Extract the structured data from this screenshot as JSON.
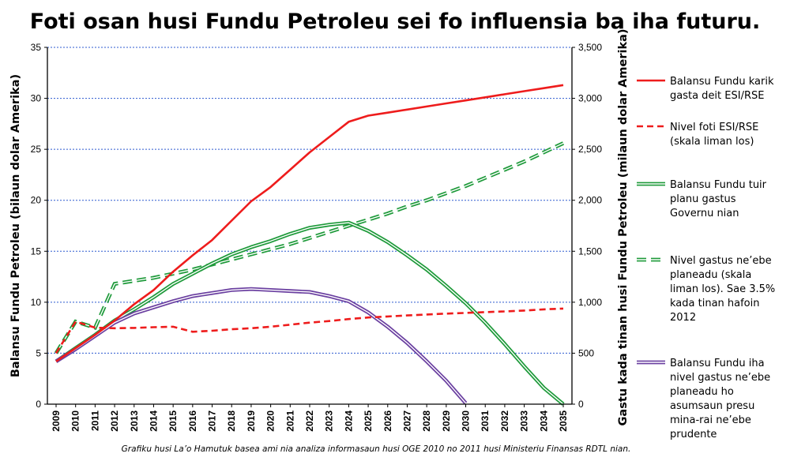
{
  "chart_data": {
    "type": "line",
    "title": "Foti osan husi Fundu Petroleu sei fo influensia ba iha futuru.",
    "ylabel_left": "Balansu Fundu Petroleu (bilaun dolar Amerika)",
    "ylabel_right": "Gastu kada tinan husi Fundu Petroleu (milaun dolar Amerika)",
    "caption": "Grafiku husi La’o Hamutuk basea ami nia analiza informasaun husi OGE 2010 no 2011 husi Ministeriu Finansas RDTL nian.",
    "x": [
      2009,
      2010,
      2011,
      2012,
      2013,
      2014,
      2015,
      2016,
      2017,
      2018,
      2019,
      2020,
      2021,
      2022,
      2023,
      2024,
      2025,
      2026,
      2027,
      2028,
      2029,
      2030,
      2031,
      2032,
      2033,
      2034,
      2035
    ],
    "y_left_range": [
      0,
      35
    ],
    "y_left_ticks": [
      "0",
      "5",
      "10",
      "15",
      "20",
      "25",
      "30",
      "35"
    ],
    "y_right_range": [
      0,
      3500
    ],
    "y_right_ticks": [
      "0",
      "500",
      "1,000",
      "1,500",
      "2,000",
      "2,500",
      "3,000",
      "3,500"
    ],
    "grid": "horizontal",
    "legend_position": "right",
    "series": [
      {
        "name": "Balansu Fundu karik gasta deit ESI/RSE",
        "axis": "left",
        "style": "solid",
        "color": "#ee1c1c",
        "values": [
          4.2,
          5.5,
          6.8,
          8.2,
          9.8,
          11.2,
          13.0,
          14.6,
          16.1,
          18.0,
          19.9,
          21.3,
          23.0,
          24.7,
          26.2,
          27.7,
          28.3,
          28.6,
          28.9,
          29.2,
          29.5,
          29.8,
          30.1,
          30.4,
          30.7,
          31.0,
          31.3
        ]
      },
      {
        "name": "Nivel foti ESI/RSE (skala liman los)",
        "axis": "right",
        "style": "dashed",
        "color": "#ee1c1c",
        "values": [
          500,
          810,
          750,
          745,
          748,
          755,
          760,
          710,
          720,
          735,
          745,
          760,
          780,
          800,
          815,
          835,
          850,
          860,
          870,
          880,
          888,
          895,
          903,
          910,
          918,
          930,
          938
        ]
      },
      {
        "name": "Balansu Fundu tuir planu gastus Governu nian",
        "axis": "left",
        "style": "double",
        "color": "#1e9a3a",
        "values": [
          4.2,
          5.5,
          6.8,
          8.2,
          9.3,
          10.5,
          11.8,
          12.8,
          13.8,
          14.7,
          15.4,
          16.0,
          16.7,
          17.3,
          17.6,
          17.8,
          17.0,
          15.9,
          14.6,
          13.2,
          11.6,
          9.9,
          8.0,
          5.9,
          3.7,
          1.6,
          0
        ]
      },
      {
        "name": "Nivel gastus ne’ebe planeadu (skala liman los). Sae 3.5% kada tinan hafoin 2012",
        "axis": "right",
        "style": "dashed-double",
        "color": "#1e9a3a",
        "values": [
          500,
          810,
          750,
          1180,
          1210,
          1240,
          1280,
          1320,
          1370,
          1420,
          1470,
          1520,
          1570,
          1630,
          1690,
          1750,
          1810,
          1870,
          1940,
          2000,
          2070,
          2140,
          2220,
          2300,
          2380,
          2470,
          2560
        ]
      },
      {
        "name": "Balansu Fundu iha nivel gastus ne’ebe planeadu ho asumsaun presu mina-rai ne’ebe prudente",
        "axis": "left",
        "style": "double",
        "color": "#6a3fa0",
        "values": [
          4.2,
          5.4,
          6.7,
          8.0,
          8.9,
          9.5,
          10.1,
          10.6,
          10.9,
          11.2,
          11.3,
          11.2,
          11.1,
          11.0,
          10.6,
          10.1,
          9.0,
          7.6,
          6.0,
          4.2,
          2.3,
          0.1,
          null,
          null,
          null,
          null,
          null
        ]
      }
    ]
  }
}
